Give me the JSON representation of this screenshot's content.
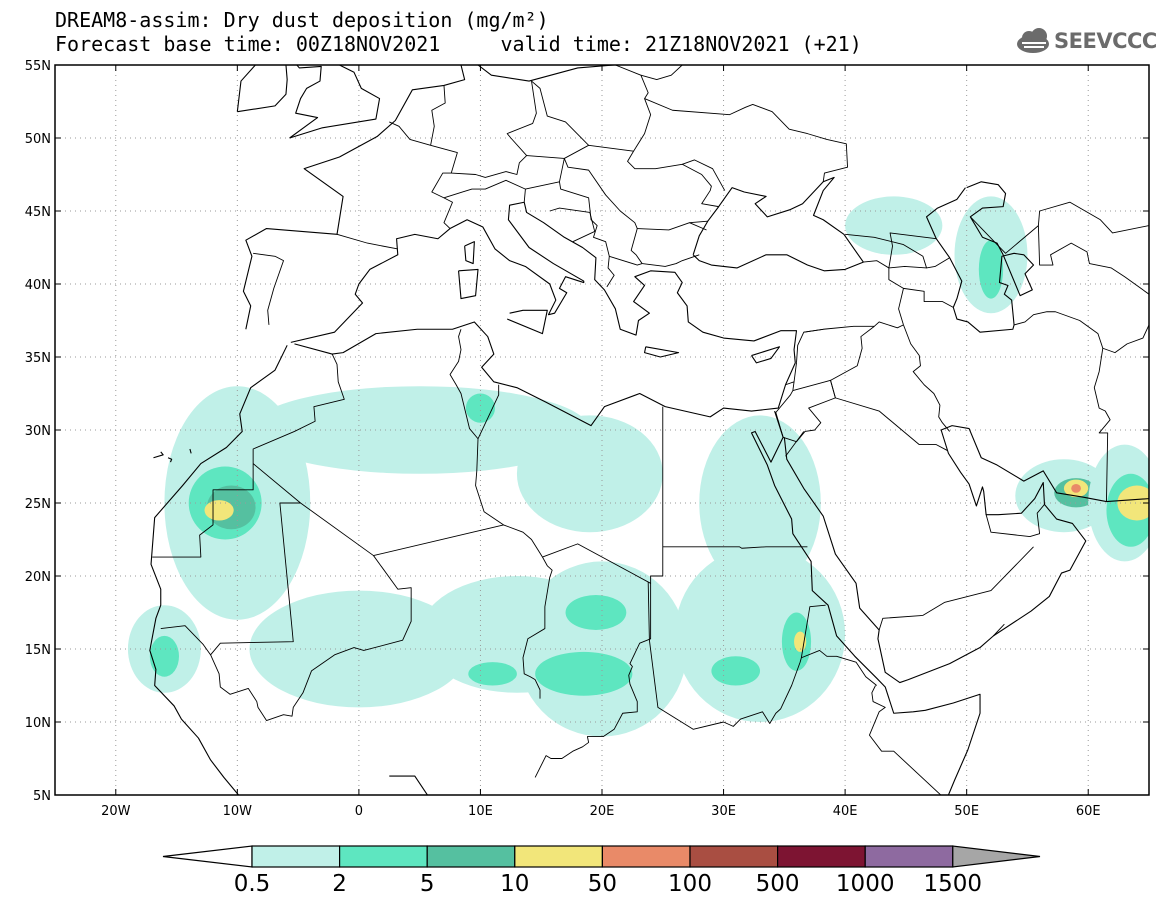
{
  "header": {
    "title_line1": "DREAM8-assim: Dry dust deposition (mg/m²)",
    "title_line2": "Forecast base time: 00Z18NOV2021     valid time: 21Z18NOV2021 (+21)",
    "logo_text": "SEEVCCC"
  },
  "map": {
    "lon_range": [
      -25,
      65
    ],
    "lat_range": [
      5,
      55
    ],
    "lon_ticks": [
      {
        "value": -20,
        "label": "20W"
      },
      {
        "value": -10,
        "label": "10W"
      },
      {
        "value": 0,
        "label": "0"
      },
      {
        "value": 10,
        "label": "10E"
      },
      {
        "value": 20,
        "label": "20E"
      },
      {
        "value": 30,
        "label": "30E"
      },
      {
        "value": 40,
        "label": "40E"
      },
      {
        "value": 50,
        "label": "50E"
      },
      {
        "value": 60,
        "label": "60E"
      }
    ],
    "lat_ticks": [
      {
        "value": 55,
        "label": "55N"
      },
      {
        "value": 50,
        "label": "50N"
      },
      {
        "value": 45,
        "label": "45N"
      },
      {
        "value": 40,
        "label": "40N"
      },
      {
        "value": 35,
        "label": "35N"
      },
      {
        "value": 30,
        "label": "30N"
      },
      {
        "value": 25,
        "label": "25N"
      },
      {
        "value": 20,
        "label": "20N"
      },
      {
        "value": 15,
        "label": "15N"
      },
      {
        "value": 10,
        "label": "10N"
      },
      {
        "value": 5,
        "label": "5N"
      }
    ],
    "grid": true
  },
  "colorbar": {
    "labels": [
      "0.5",
      "2",
      "5",
      "10",
      "50",
      "100",
      "500",
      "1000",
      "1500"
    ],
    "colors": [
      "#c0f0e8",
      "#5ee6c0",
      "#55c0a0",
      "#f2e67a",
      "#e98a68",
      "#a94e42",
      "#7d1432",
      "#8e6aa0"
    ],
    "low_color": "#ffffff",
    "high_color": "#a6a6a6"
  },
  "chart_data": {
    "type": "heatmap",
    "title": "DREAM8-assim: Dry dust deposition (mg/m²)",
    "subtitle": "Forecast base time: 00Z18NOV2021     valid time: 21Z18NOV2021 (+21)",
    "units": "mg/m²",
    "xlim": [
      -25,
      65
    ],
    "ylim": [
      5,
      55
    ],
    "levels": [
      0.5,
      2,
      5,
      10,
      50,
      100,
      500,
      1000,
      1500
    ],
    "features": [
      {
        "lon": -10,
        "lat": 25,
        "level": "0.5-2",
        "rx": 6,
        "ry": 8,
        "shade": 0
      },
      {
        "lon": -11,
        "lat": 25,
        "level": "2-5",
        "rx": 3,
        "ry": 2.5,
        "shade": 1
      },
      {
        "lon": -10.5,
        "lat": 24.7,
        "level": "5-10",
        "rx": 2,
        "ry": 1.5,
        "shade": 2
      },
      {
        "lon": -11.5,
        "lat": 24.5,
        "level": "10-50",
        "rx": 1.2,
        "ry": 0.7,
        "shade": 3
      },
      {
        "lon": 5,
        "lat": 30,
        "level": "0.5-2",
        "rx": 14,
        "ry": 3,
        "shade": 0
      },
      {
        "lon": 19,
        "lat": 27,
        "level": "0.5-2",
        "rx": 6,
        "ry": 4,
        "shade": 0
      },
      {
        "lon": 10,
        "lat": 31.5,
        "level": "2-5",
        "rx": 1.2,
        "ry": 1,
        "shade": 1
      },
      {
        "lon": 33,
        "lat": 25,
        "level": "0.5-2",
        "rx": 5,
        "ry": 6,
        "shade": 0
      },
      {
        "lon": -16,
        "lat": 15,
        "level": "0.5-2",
        "rx": 3,
        "ry": 3,
        "shade": 0
      },
      {
        "lon": -16,
        "lat": 14.5,
        "level": "2-5",
        "rx": 1.2,
        "ry": 1.4,
        "shade": 1
      },
      {
        "lon": 0,
        "lat": 15,
        "level": "0.5-2",
        "rx": 9,
        "ry": 4,
        "shade": 0
      },
      {
        "lon": 13,
        "lat": 16,
        "level": "0.5-2",
        "rx": 8,
        "ry": 4,
        "shade": 0
      },
      {
        "lon": 20,
        "lat": 15,
        "level": "0.5-2",
        "rx": 7,
        "ry": 6,
        "shade": 0
      },
      {
        "lon": 19.5,
        "lat": 17.5,
        "level": "2-5",
        "rx": 2.5,
        "ry": 1.2,
        "shade": 1
      },
      {
        "lon": 18.5,
        "lat": 13.3,
        "level": "2-5",
        "rx": 4,
        "ry": 1.5,
        "shade": 1
      },
      {
        "lon": 11,
        "lat": 13.3,
        "level": "2-5",
        "rx": 2,
        "ry": 0.8,
        "shade": 1
      },
      {
        "lon": 33,
        "lat": 16,
        "level": "0.5-2",
        "rx": 7,
        "ry": 6,
        "shade": 0
      },
      {
        "lon": 31,
        "lat": 13.5,
        "level": "2-5",
        "rx": 2,
        "ry": 1,
        "shade": 1
      },
      {
        "lon": 36,
        "lat": 15.5,
        "level": "2-5",
        "rx": 1.2,
        "ry": 2,
        "shade": 1
      },
      {
        "lon": 36.3,
        "lat": 15.5,
        "level": "10-50",
        "rx": 0.5,
        "ry": 0.7,
        "shade": 3
      },
      {
        "lon": 44,
        "lat": 44,
        "level": "0.5-2",
        "rx": 4,
        "ry": 2,
        "shade": 0
      },
      {
        "lon": 52,
        "lat": 42,
        "level": "0.5-2",
        "rx": 3,
        "ry": 4,
        "shade": 0
      },
      {
        "lon": 52,
        "lat": 41,
        "level": "2-5",
        "rx": 1,
        "ry": 2,
        "shade": 1
      },
      {
        "lon": 58,
        "lat": 25.5,
        "level": "0.5-2",
        "rx": 4,
        "ry": 2.5,
        "shade": 0
      },
      {
        "lon": 59,
        "lat": 25.7,
        "level": "5-10",
        "rx": 1.8,
        "ry": 1,
        "shade": 2
      },
      {
        "lon": 59,
        "lat": 26,
        "level": "10-50",
        "rx": 1,
        "ry": 0.6,
        "shade": 3
      },
      {
        "lon": 59,
        "lat": 26,
        "level": "50-100",
        "rx": 0.4,
        "ry": 0.3,
        "shade": 4
      },
      {
        "lon": 63,
        "lat": 25,
        "level": "0.5-2",
        "rx": 3,
        "ry": 4,
        "shade": 0
      },
      {
        "lon": 63.5,
        "lat": 24.5,
        "level": "2-5",
        "rx": 2,
        "ry": 2.5,
        "shade": 1
      },
      {
        "lon": 64,
        "lat": 25,
        "level": "10-50",
        "rx": 1.6,
        "ry": 1.2,
        "shade": 3
      }
    ]
  }
}
